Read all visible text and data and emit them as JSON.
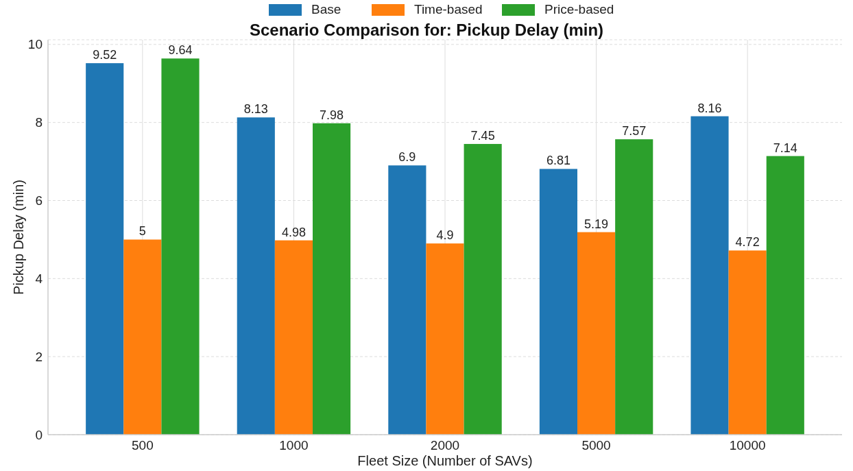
{
  "chart_data": {
    "type": "bar",
    "title": "Scenario Comparison for: Pickup Delay (min)",
    "xlabel": "Fleet Size (Number of SAVs)",
    "ylabel": "Pickup Delay (min)",
    "categories": [
      "500",
      "1000",
      "2000",
      "5000",
      "10000"
    ],
    "series": [
      {
        "name": "Base",
        "color": "#1f77b4",
        "values": [
          9.52,
          8.13,
          6.9,
          6.81,
          8.16
        ]
      },
      {
        "name": "Time-based",
        "color": "#ff7f0e",
        "values": [
          5,
          4.98,
          4.9,
          5.19,
          4.72
        ]
      },
      {
        "name": "Price-based",
        "color": "#2ca02c",
        "values": [
          9.64,
          7.98,
          7.45,
          7.57,
          7.14
        ]
      }
    ],
    "ylim": [
      0,
      10.12
    ],
    "yticks": [
      0,
      2,
      4,
      6,
      8,
      10
    ],
    "grid": true,
    "legend": "top",
    "data_labels": true
  }
}
